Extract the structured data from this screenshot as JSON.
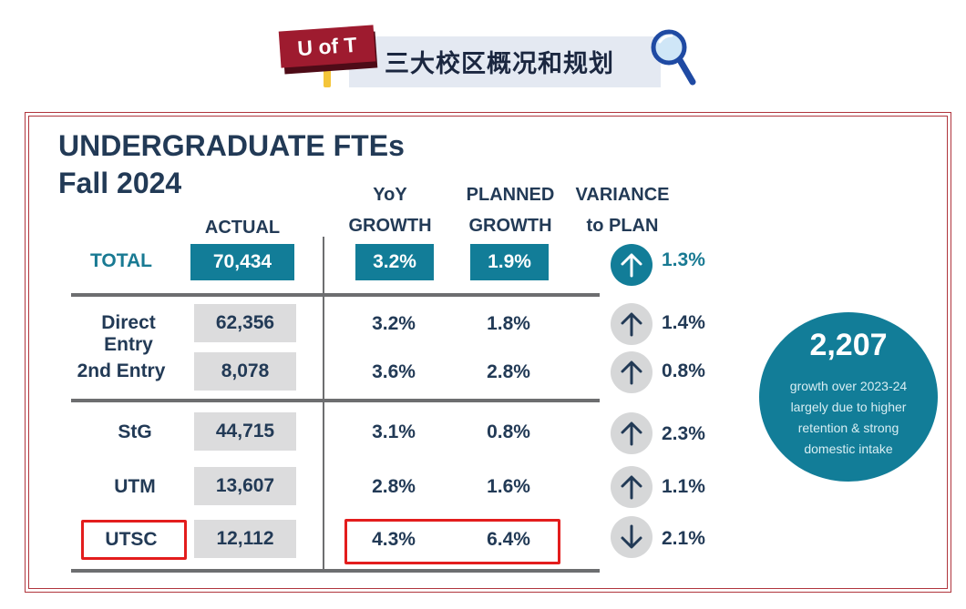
{
  "banner": {
    "logo_text": "U of T",
    "title": "三大校区概况和规划"
  },
  "heading": {
    "title": "UNDERGRADUATE FTEs",
    "subtitle": "Fall 2024"
  },
  "columns": {
    "actual": "ACTUAL",
    "yoy_1": "YoY",
    "yoy_2": "GROWTH",
    "planned_1": "PLANNED",
    "planned_2": "GROWTH",
    "variance_1": "VARIANCE",
    "variance_2": "to PLAN"
  },
  "rows": [
    {
      "label": "TOTAL",
      "actual": "70,434",
      "yoy": "3.2%",
      "planned": "1.9%",
      "direction": "up",
      "variance": "1.3%"
    },
    {
      "label": "Direct Entry",
      "actual": "62,356",
      "yoy": "3.2%",
      "planned": "1.8%",
      "direction": "up",
      "variance": "1.4%"
    },
    {
      "label": "2nd Entry",
      "actual": "8,078",
      "yoy": "3.6%",
      "planned": "2.8%",
      "direction": "up",
      "variance": "0.8%"
    },
    {
      "label": "StG",
      "actual": "44,715",
      "yoy": "3.1%",
      "planned": "0.8%",
      "direction": "up",
      "variance": "2.3%"
    },
    {
      "label": "UTM",
      "actual": "13,607",
      "yoy": "2.8%",
      "planned": "1.6%",
      "direction": "up",
      "variance": "1.1%"
    },
    {
      "label": "UTSC",
      "actual": "12,112",
      "yoy": "4.3%",
      "planned": "6.4%",
      "direction": "down",
      "variance": "2.1%"
    }
  ],
  "callout": {
    "value": "2,207",
    "line1": "growth over 2023-24",
    "line2": "largely due to higher",
    "line3": "retention & strong",
    "line4": "domestic intake"
  },
  "colors": {
    "teal": "#127d98",
    "highlight_red": "#e31d1d",
    "frame": "#b0353d",
    "cell_gray": "#dcdcdd"
  }
}
